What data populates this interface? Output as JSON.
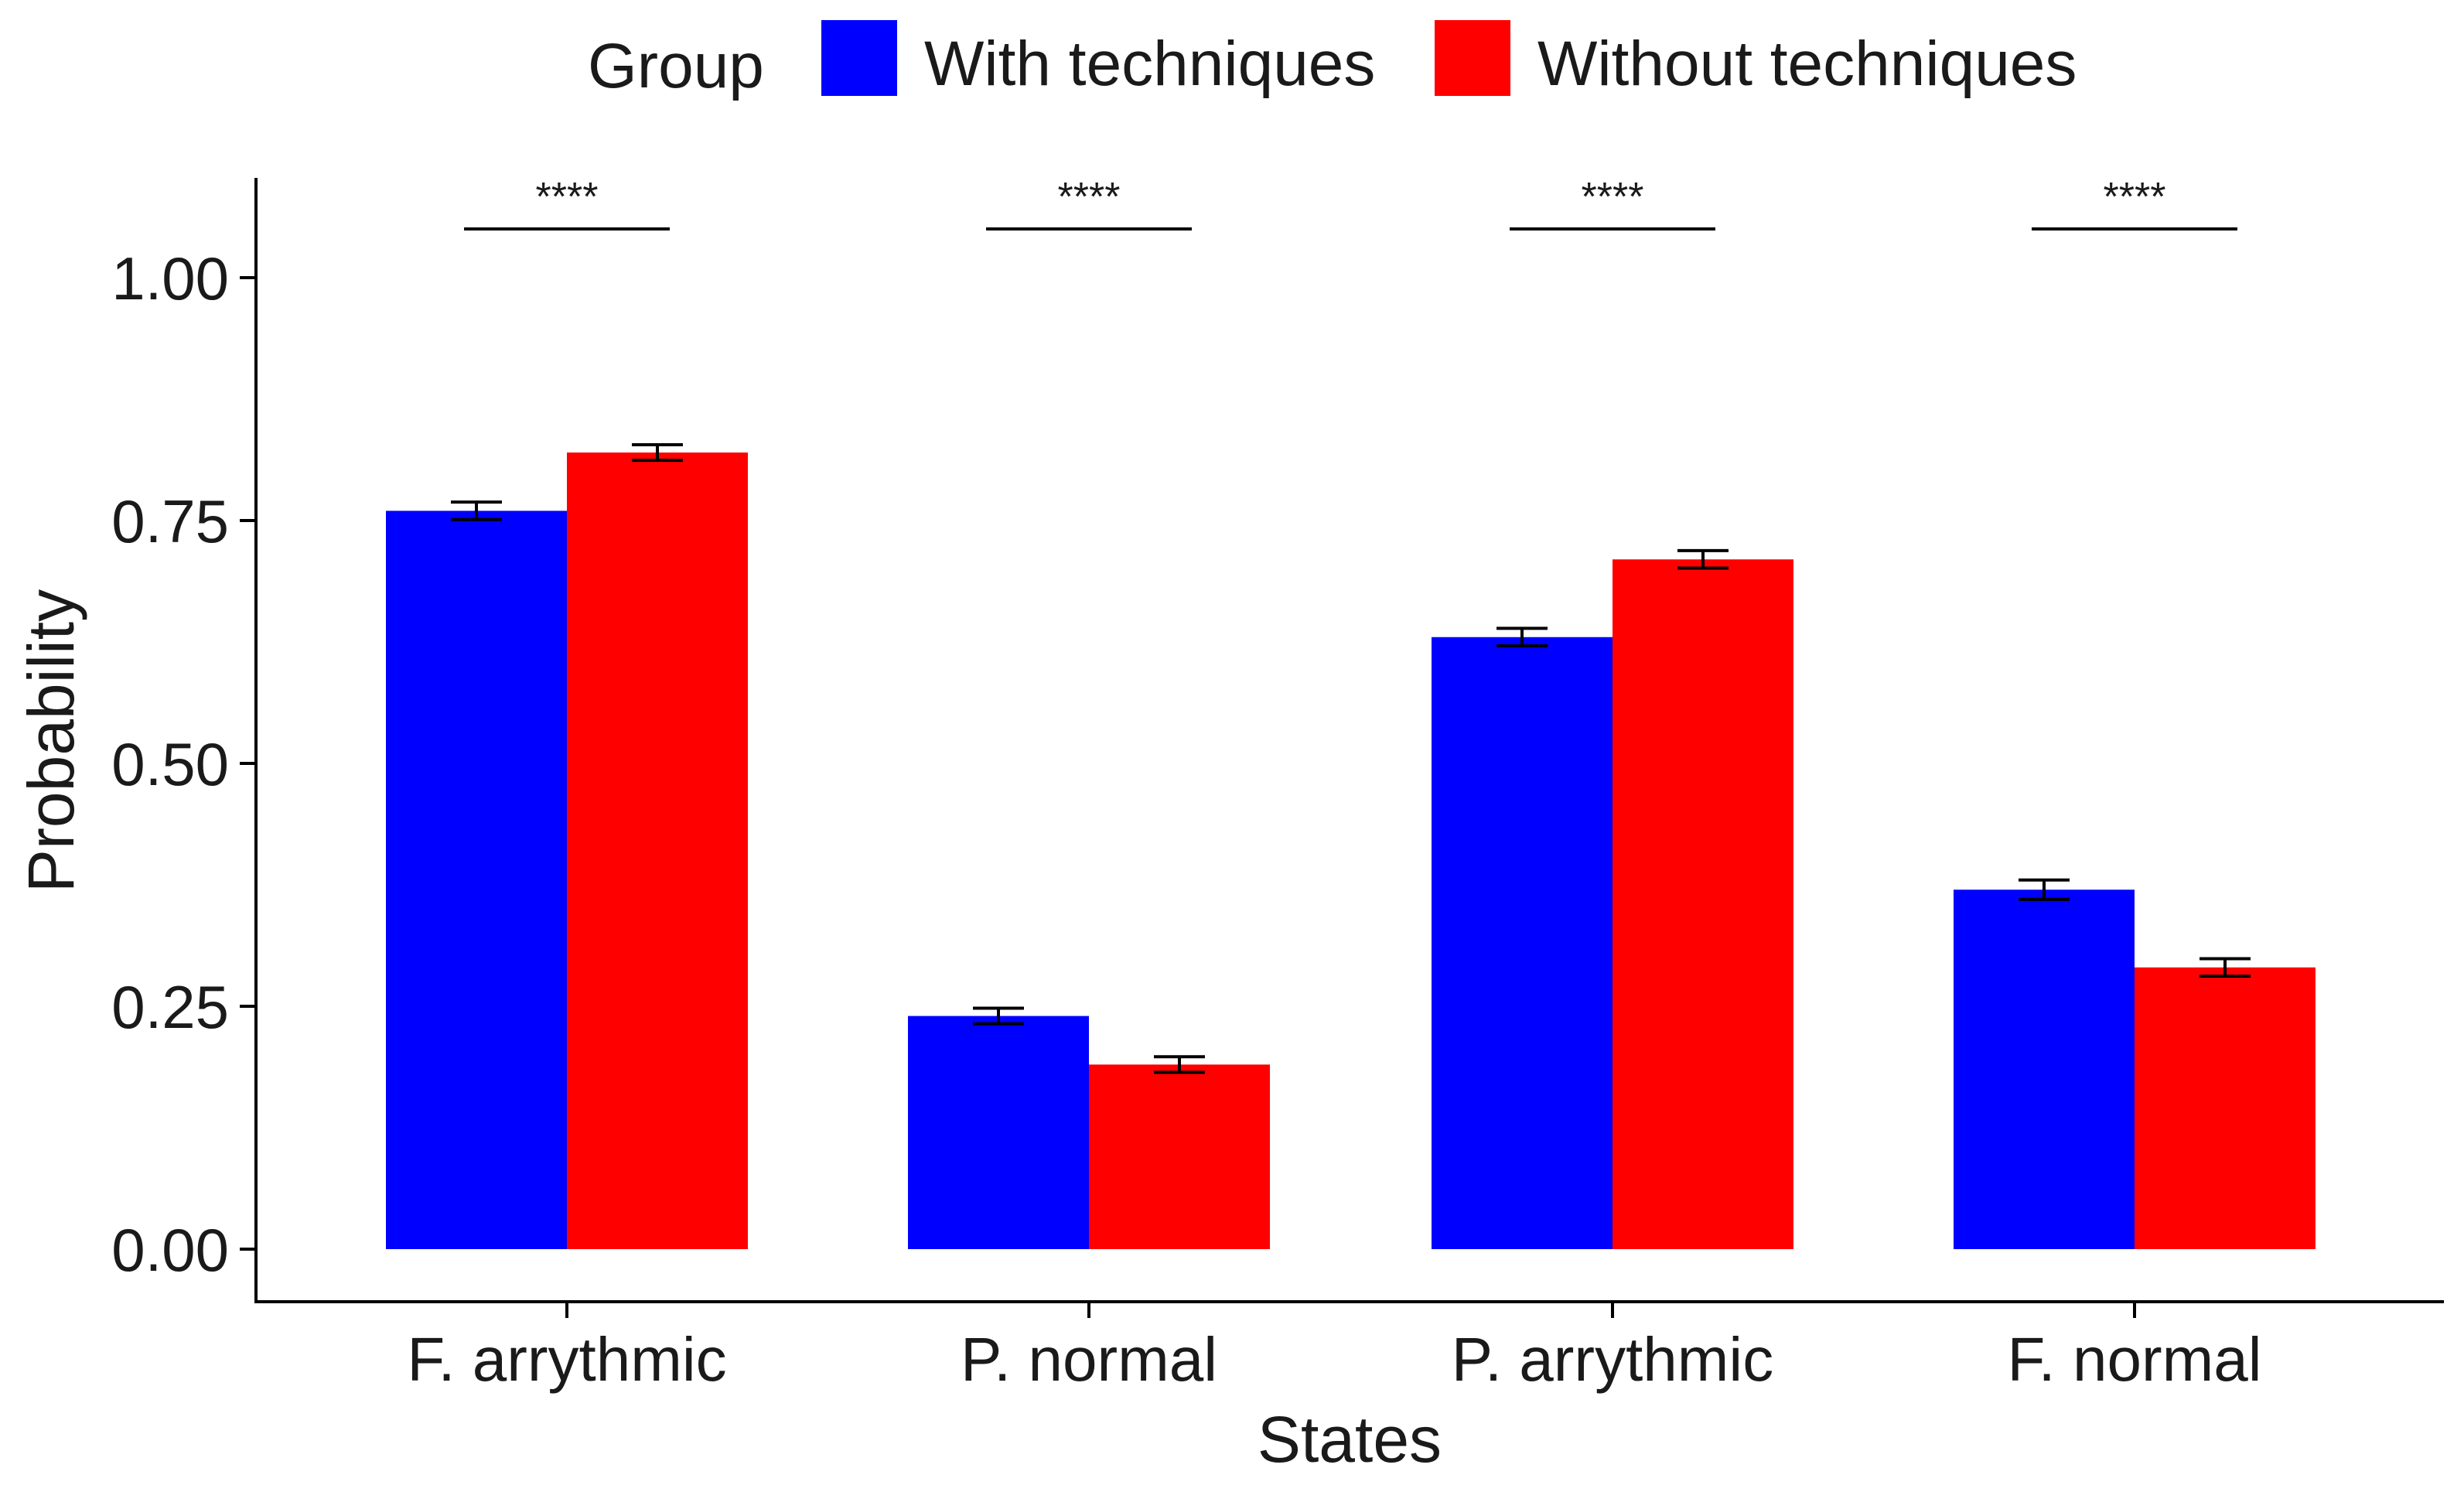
{
  "chart_data": {
    "type": "bar",
    "title": "",
    "xlabel": "States",
    "ylabel": "Probability",
    "ylim": [
      0,
      1.05
    ],
    "yticks": [
      0.0,
      0.25,
      0.5,
      0.75,
      1.0
    ],
    "ytick_labels": [
      "0.00",
      "0.25",
      "0.50",
      "0.75",
      "1.00"
    ],
    "categories": [
      "F. arrythmic",
      "P. normal",
      "P. arrythmic",
      "F. normal"
    ],
    "legend": {
      "title": "Group",
      "position": "top"
    },
    "series": [
      {
        "name": "With techniques",
        "color": "#0000ff",
        "values": [
          0.76,
          0.24,
          0.63,
          0.37
        ],
        "errors": [
          0.009,
          0.008,
          0.009,
          0.01
        ]
      },
      {
        "name": "Without techniques",
        "color": "#ff0000",
        "values": [
          0.82,
          0.19,
          0.71,
          0.29
        ],
        "errors": [
          0.008,
          0.008,
          0.009,
          0.009
        ]
      }
    ],
    "significance": [
      "****",
      "****",
      "****",
      "****"
    ],
    "grid": false
  }
}
